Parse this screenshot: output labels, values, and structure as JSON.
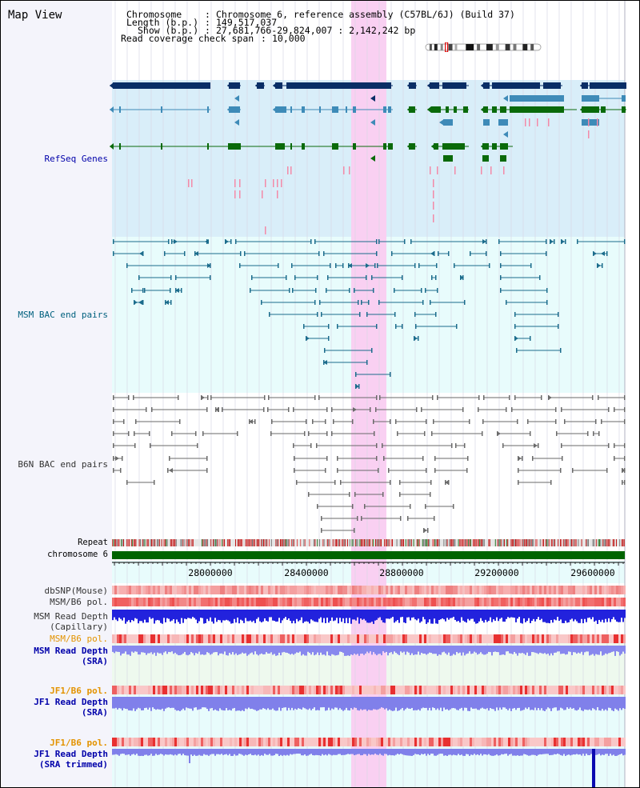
{
  "header": {
    "title": "Map View",
    "chromosome_label": "Chromosome",
    "chromosome_value": "Chromosome 6, reference assembly (C57BL/6J) (Build 37)",
    "length_label": "Length (b.p.)",
    "length_value": "149,517,037",
    "show_label": "Show (b.p.)",
    "show_value": "27,681,766-29,824,007 : 2,142,242 bp",
    "coverage_label": "Read coverage check span",
    "coverage_value": "10,000"
  },
  "tracks": {
    "refseq": "RefSeq Genes",
    "msm_bac": "MSM BAC end pairs",
    "b6n_bac": "B6N BAC end pairs",
    "repeat": "Repeat",
    "chromosome": "chromosome 6",
    "dbsnp": "dbSNP(Mouse)",
    "msm_b6_pol": "MSM/B6 pol.",
    "msm_read_depth_cap_1": "MSM Read Depth",
    "msm_read_depth_cap_2": "(Capillary)",
    "msm_b6_pol_sra": "MSM/B6 pol.",
    "msm_read_depth_sra_1": "MSM Read Depth",
    "msm_read_depth_sra_2": "(SRA)",
    "jf1_b6_pol": "JF1/B6 pol.",
    "jf1_read_depth_1": "JF1 Read Depth",
    "jf1_read_depth_2": "(SRA)",
    "jf1_b6_pol_2": "JF1/B6 pol.",
    "jf1_trim_1": "JF1 Read Depth",
    "jf1_trim_2": "(SRA trimmed)"
  },
  "axis": {
    "ticks": [
      "28000000",
      "28400000",
      "28800000",
      "29200000",
      "29600000"
    ]
  },
  "colors": {
    "refseq_bg": "#dcefF8",
    "bac_bg": "#e6fbfb",
    "highlight": "#f7c9ef",
    "gene_dark": "#0a2e66",
    "gene_mid": "#3e8bb8",
    "gene_green": "#0a6a0a",
    "msm_label": "#00607e",
    "b6n_label": "#333333",
    "orange_label": "#e39300",
    "blue_label": "#0000aa"
  }
}
